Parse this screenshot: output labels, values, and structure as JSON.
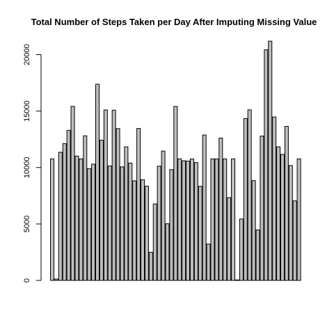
{
  "chart_data": {
    "type": "bar",
    "title": "Total Number of Steps Taken per Day After Imputing Missing Value",
    "xlabel": "",
    "ylabel": "",
    "ylim": [
      0,
      22000
    ],
    "yticks": [
      0,
      5000,
      10000,
      15000,
      20000
    ],
    "ytick_labels": [
      "0",
      "5000",
      "10000",
      "15000",
      "20000"
    ],
    "bar_color": "#bebebe",
    "grid": false,
    "values": [
      10766,
      126,
      11352,
      12116,
      13294,
      15420,
      11015,
      10766,
      12811,
      9900,
      10304,
      17382,
      12426,
      15098,
      10139,
      15084,
      13452,
      10056,
      11829,
      10395,
      8821,
      13460,
      8918,
      8355,
      2492,
      6778,
      10119,
      11458,
      5018,
      9819,
      15414,
      10766,
      10600,
      10571,
      10766,
      10439,
      8334,
      12883,
      3219,
      10766,
      10766,
      12608,
      10765,
      7336,
      10766,
      41,
      5441,
      14339,
      15110,
      8841,
      4472,
      12787,
      20427,
      21194,
      14478,
      11834,
      11162,
      13646,
      10183,
      7047,
      10766
    ]
  }
}
